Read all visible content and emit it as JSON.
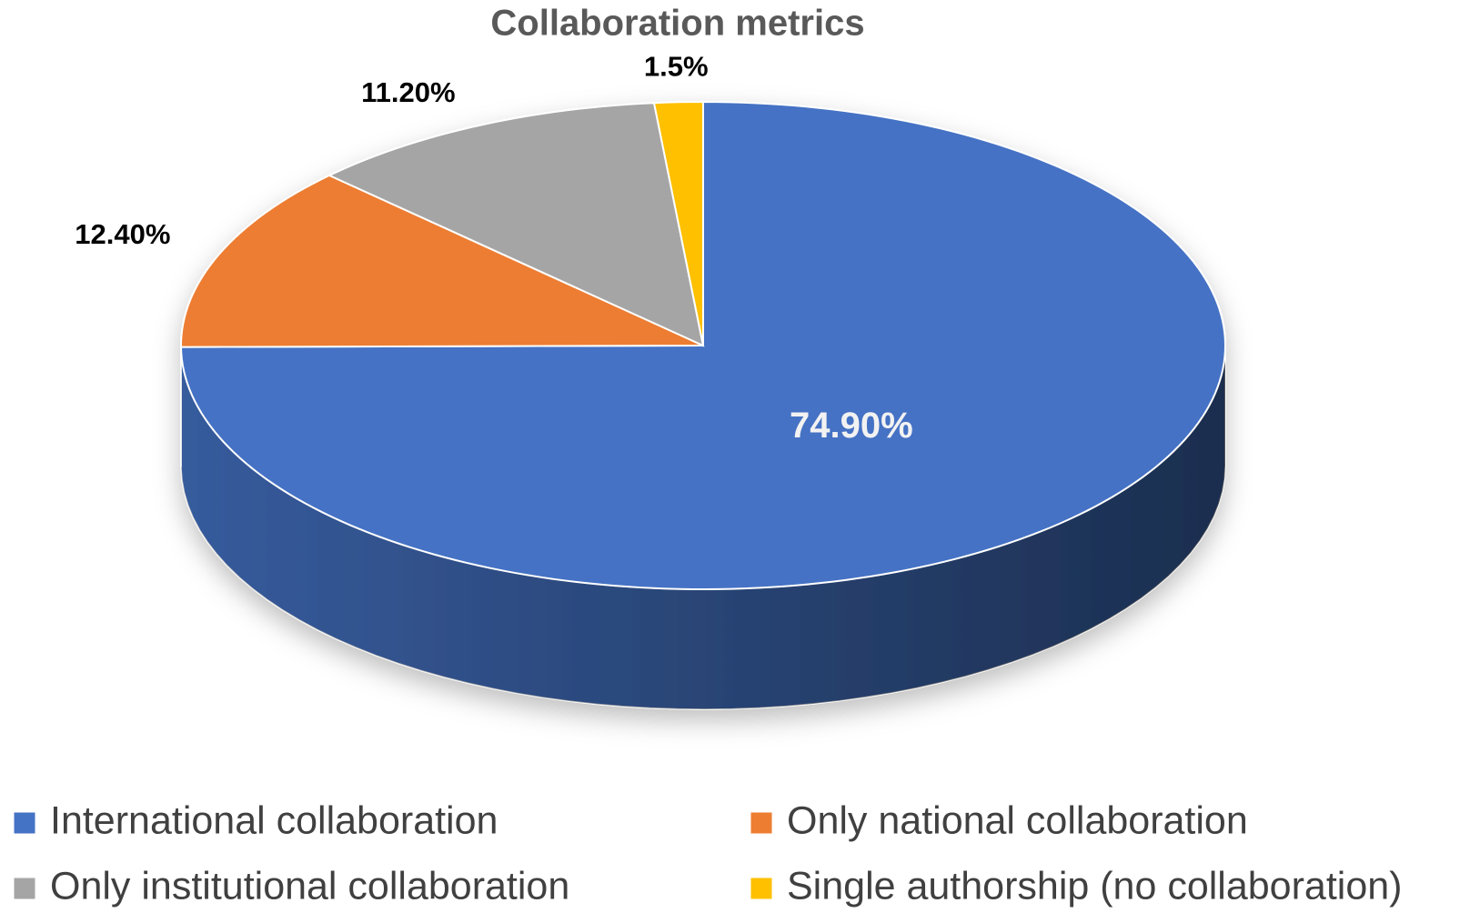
{
  "chart_data": {
    "type": "pie",
    "title": "Collaboration metrics",
    "categories": [
      "International collaboration",
      "Only national collaboration",
      "Only institutional collaboration",
      "Single authorship (no collaboration)"
    ],
    "values": [
      74.9,
      12.4,
      11.2,
      1.5
    ],
    "value_labels": [
      "74.90%",
      "12.40%",
      "11.20%",
      "1.5%"
    ],
    "colors": [
      "#4472c4",
      "#ed7d31",
      "#a5a5a5",
      "#ffc000"
    ],
    "legend": "bottom"
  }
}
